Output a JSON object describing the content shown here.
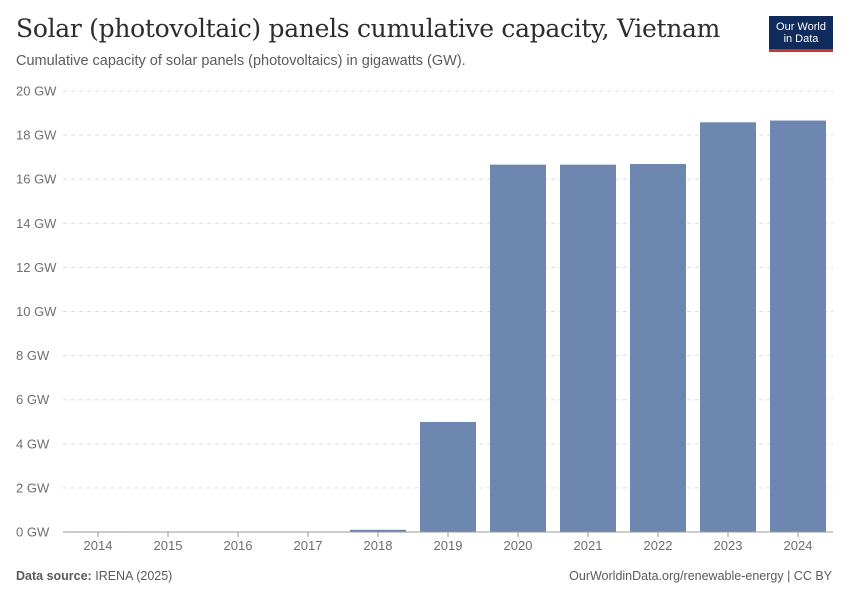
{
  "chart_data": {
    "type": "bar",
    "title": "Solar (photovoltaic) panels cumulative capacity, Vietnam",
    "subtitle": "Cumulative capacity of solar panels (photovoltaics) in gigawatts (GW).",
    "categories": [
      "2014",
      "2015",
      "2016",
      "2017",
      "2018",
      "2019",
      "2020",
      "2021",
      "2022",
      "2023",
      "2024"
    ],
    "values": [
      0.004,
      0.005,
      0.005,
      0.009,
      0.1,
      4.99,
      16.66,
      16.66,
      16.69,
      18.58,
      18.66
    ],
    "ylim": [
      0,
      20
    ],
    "yticks": [
      0,
      2,
      4,
      6,
      8,
      10,
      12,
      14,
      16,
      18,
      20
    ],
    "ytick_labels": [
      "0 GW",
      "2 GW",
      "4 GW",
      "6 GW",
      "8 GW",
      "10 GW",
      "12 GW",
      "14 GW",
      "16 GW",
      "18 GW",
      "20 GW"
    ],
    "xlabel": "",
    "ylabel": "",
    "grid": true,
    "bar_color": "#6d87b0"
  },
  "branding": {
    "logo_line1": "Our World",
    "logo_line2": "in Data"
  },
  "footer": {
    "source_label": "Data source:",
    "source_value": "IRENA (2025)",
    "link": "OurWorldinData.org/renewable-energy | CC BY"
  }
}
